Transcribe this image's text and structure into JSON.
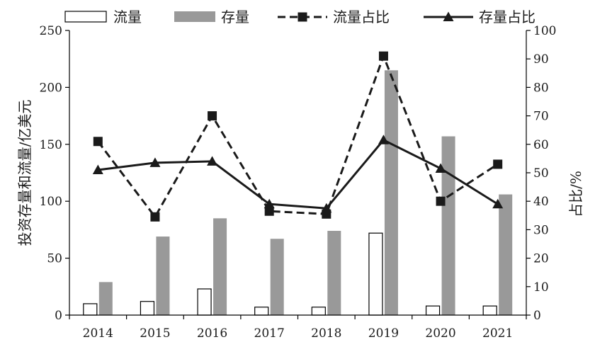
{
  "chart_data": {
    "type": "bar",
    "categories": [
      "2014",
      "2015",
      "2016",
      "2017",
      "2018",
      "2019",
      "2020",
      "2021"
    ],
    "series": [
      {
        "name": "流量",
        "kind": "bar",
        "axis": "left",
        "values": [
          10,
          12,
          23,
          7,
          7,
          72,
          8,
          8
        ],
        "color": "#ffffff",
        "stroke": "#000000"
      },
      {
        "name": "存量",
        "kind": "bar",
        "axis": "left",
        "values": [
          29,
          69,
          85,
          67,
          74,
          215,
          157,
          106
        ],
        "color": "#999999"
      },
      {
        "name": "流量占比",
        "kind": "line",
        "axis": "right",
        "style": "dashed",
        "marker": "square",
        "values": [
          61,
          34.5,
          70,
          36.5,
          35.5,
          91,
          40,
          53
        ],
        "color": "#1a1a1a"
      },
      {
        "name": "存量占比",
        "kind": "line",
        "axis": "right",
        "style": "solid",
        "marker": "triangle",
        "values": [
          51,
          53.5,
          54,
          39,
          37.5,
          61.5,
          51.5,
          39
        ],
        "color": "#1a1a1a"
      }
    ],
    "ylabel": "投资存量和流量/亿美元",
    "y2label": "占比/%",
    "ylim": [
      0,
      250
    ],
    "y2lim": [
      0,
      100
    ],
    "yticks": [
      "0",
      "50",
      "100",
      "150",
      "200",
      "250"
    ],
    "y2ticks": [
      "0",
      "10",
      "20",
      "30",
      "40",
      "50",
      "60",
      "70",
      "80",
      "90",
      "100"
    ],
    "grid": false,
    "legend": "top"
  }
}
